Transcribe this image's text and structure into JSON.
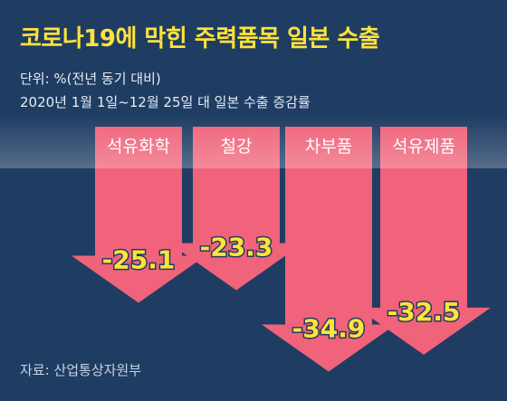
{
  "title": "코로나19에 막힌 주력품목 일본 수출",
  "subtitle_unit": "단위: %(전년 동기 대비)",
  "subtitle_period": "2020년 1월 1일~12월 25일 대 일본 수출 증감률",
  "source": "자료: 산업통상자원부",
  "colors": {
    "background": "#1f3d63",
    "arrow": "#f0637a",
    "title": "#ffe23a",
    "value": "#ffe23a",
    "label": "#ffffff"
  },
  "chart_data": {
    "type": "bar",
    "orientation": "downward-arrows",
    "categories": [
      "석유화학",
      "철강",
      "차부품",
      "석유제품"
    ],
    "values": [
      -25.1,
      -23.3,
      -34.9,
      -32.5
    ],
    "value_labels": [
      "-25.1",
      "-23.3",
      "-34.9",
      "-32.5"
    ],
    "title": "코로나19에 막힌 주력품목 일본 수출",
    "ylim": [
      -40,
      0
    ],
    "grid": false,
    "legend": "none"
  }
}
